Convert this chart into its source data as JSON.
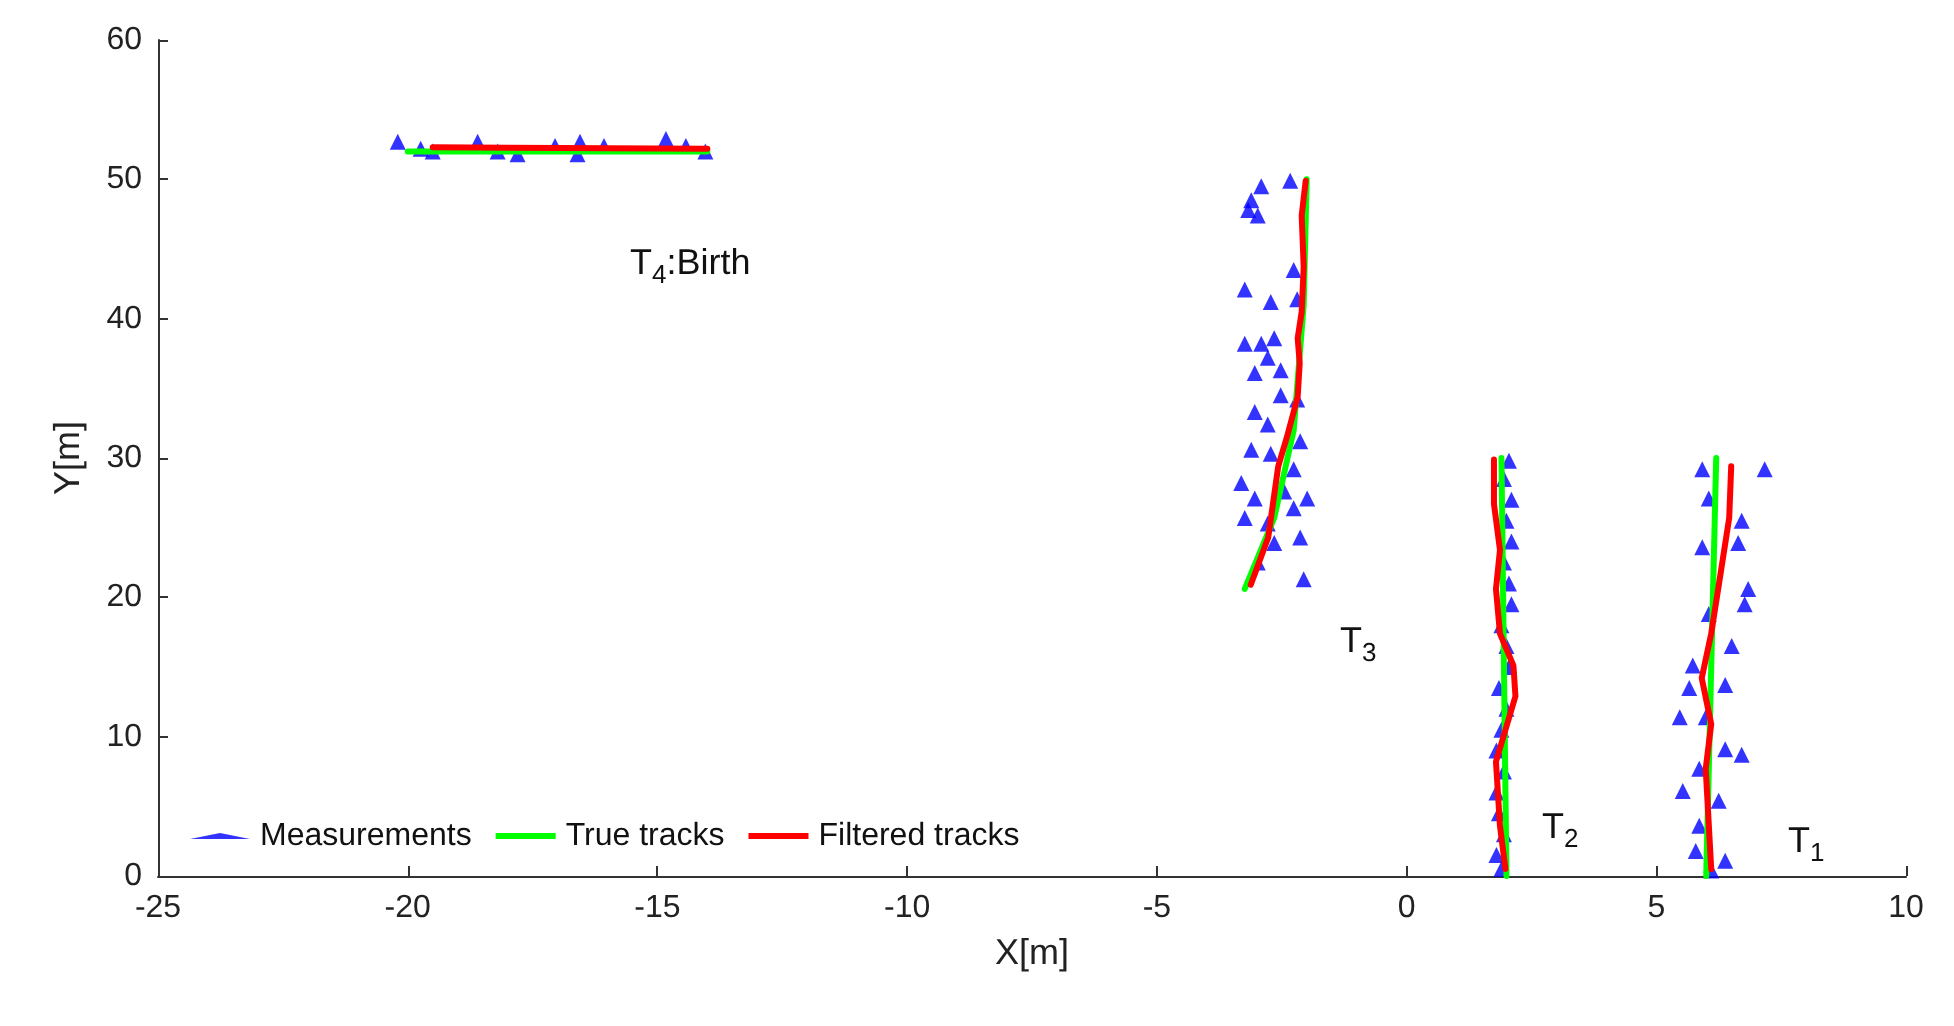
{
  "chart_data": {
    "type": "scatter",
    "xlabel": "X[m]",
    "ylabel": "Y[m]",
    "xlim": [
      -25,
      10
    ],
    "ylim": [
      0,
      60
    ],
    "xticks": [
      -25,
      -20,
      -15,
      -10,
      -5,
      0,
      5,
      10
    ],
    "yticks": [
      0,
      10,
      20,
      30,
      40,
      50,
      60
    ],
    "grid": false,
    "legend": "bottom left",
    "marker": "triangle",
    "series": [
      {
        "name": "Measurements",
        "color": "#0000ff",
        "x": [
          -2.33,
          -2.91,
          -3.11,
          -2.98,
          -3.17,
          -3.24,
          -2.72,
          -2.19,
          -2.26,
          -3.24,
          -2.91,
          -2.65,
          -2.78,
          -3.04,
          -2.52,
          -2.52,
          -2.19,
          -3.04,
          -2.78,
          -2.13,
          -3.11,
          -2.72,
          -2.26,
          -3.31,
          -3.04,
          -2.45,
          -1.99,
          -2.26,
          -3.24,
          -2.78,
          -2.13,
          -2.65,
          -2.98,
          -2.06,
          2.05,
          1.95,
          2.1,
          2.0,
          2.1,
          1.95,
          2.05,
          2.1,
          1.9,
          2.0,
          2.05,
          1.85,
          2.0,
          1.9,
          1.8,
          1.95,
          1.8,
          1.85,
          1.95,
          1.8,
          1.9,
          7.17,
          5.92,
          6.05,
          6.71,
          5.92,
          6.64,
          6.84,
          6.77,
          6.05,
          6.51,
          5.73,
          6.38,
          5.66,
          5.47,
          5.99,
          6.38,
          6.71,
          5.86,
          5.53,
          6.25,
          5.86,
          5.79,
          6.38,
          6.1,
          -20.2,
          -19.74,
          -19.5,
          -18.6,
          -18.2,
          -17.8,
          -17.05,
          -16.6,
          -16.55,
          -16.07,
          -14.83,
          -14.43,
          -14.04
        ],
        "values": [
          49.9,
          49.5,
          48.5,
          47.4,
          47.8,
          42.1,
          41.2,
          41.4,
          43.5,
          38.2,
          38.2,
          38.6,
          37.2,
          36.1,
          36.3,
          34.5,
          34.2,
          33.3,
          32.4,
          31.2,
          30.6,
          30.3,
          29.2,
          28.2,
          27.1,
          27.6,
          27.1,
          26.4,
          25.7,
          25.3,
          24.3,
          23.9,
          22.5,
          21.3,
          29.8,
          28.5,
          27,
          25.5,
          24,
          22.5,
          21,
          19.5,
          18,
          16.5,
          15,
          13.5,
          12,
          10.5,
          9,
          7.5,
          6,
          4.5,
          3,
          1.5,
          0.5,
          29.2,
          29.2,
          27.1,
          25.5,
          23.6,
          23.9,
          20.6,
          19.5,
          18.8,
          16.5,
          15.1,
          13.7,
          13.5,
          11.4,
          11.4,
          9.1,
          8.7,
          7.7,
          6.1,
          5.4,
          3.6,
          1.8,
          1.1,
          0.4,
          52.7,
          52.2,
          52.0,
          52.7,
          52.0,
          51.8,
          52.4,
          51.8,
          52.7,
          52.4,
          52.9,
          52.4,
          52.0
        ]
      },
      {
        "name": "True tracks",
        "type": "line",
        "marker": "none",
        "color": "#00ff00",
        "x": [
          -20,
          -14,
          null,
          -3.24,
          -2.65,
          -2.26,
          -2.06,
          -2.0,
          null,
          2.0,
          1.9,
          null,
          6.0,
          6.2
        ],
        "values": [
          52,
          52,
          null,
          20.6,
          25.7,
          32,
          41,
          50,
          null,
          0,
          30,
          null,
          0,
          30
        ]
      },
      {
        "name": "Filtered tracks",
        "type": "line",
        "marker": "none",
        "color": "#ff0000",
        "x": [
          -19.5,
          -14,
          null,
          -3.12,
          -2.77,
          -2.57,
          -2.38,
          -2.18,
          -2.14,
          -2.18,
          -2.1,
          -2.06,
          -2.1,
          -2.02,
          null,
          1.98,
          1.87,
          1.79,
          2.18,
          2.14,
          1.87,
          1.79,
          1.87,
          1.75,
          1.75,
          null,
          6.1,
          5.99,
          6.1,
          5.91,
          6.1,
          6.3,
          6.46,
          6.5
        ],
        "values": [
          52.3,
          52.2,
          null,
          20.9,
          24.3,
          29.4,
          31.7,
          34.4,
          36.8,
          38.6,
          40.5,
          43.7,
          47.4,
          49.9,
          null,
          0.5,
          3.6,
          8.2,
          12.9,
          15.1,
          17.4,
          20.6,
          23.4,
          26.7,
          29.9,
          null,
          0.5,
          7.7,
          10.9,
          14.2,
          17.4,
          22,
          25.7,
          29.4
        ]
      }
    ],
    "annotations": [
      "T$_{4}$:Birth",
      "T$_{3}$",
      "T$_{2}$",
      "T$_{1}$"
    ]
  }
}
